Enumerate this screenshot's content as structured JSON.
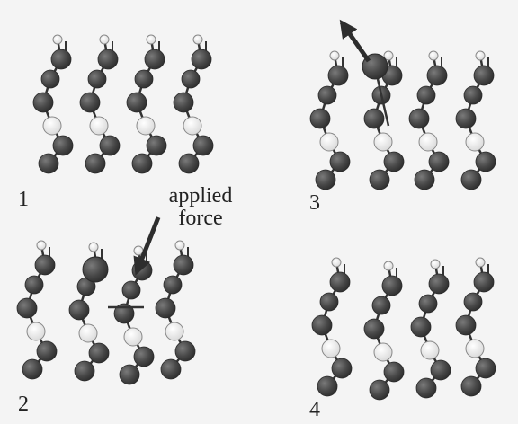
{
  "figure": {
    "panel_labels": [
      "1",
      "2",
      "3",
      "4"
    ],
    "annotation_line1": "applied",
    "annotation_line2": "force",
    "colors": {
      "background": "#f4f4f4",
      "atom_dark": "#474747",
      "atom_mid": "#5a5a5a",
      "atom_light": "#ececec",
      "bond": "#333333",
      "arrow": "#2d2d2d",
      "text": "#222222"
    }
  }
}
